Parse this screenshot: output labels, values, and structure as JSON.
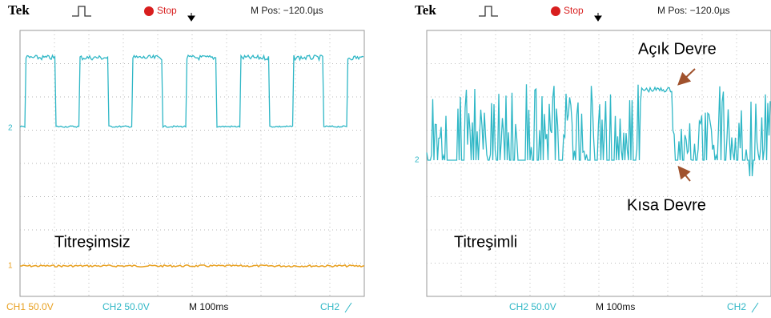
{
  "panels": [
    {
      "header": {
        "brand": "Tek",
        "status": "Stop",
        "position": "M Pos: −120.0µs"
      },
      "markers": [
        "2",
        "1"
      ],
      "footer": {
        "ch1": "CH1 50.0V",
        "ch2": "CH2 50.0V",
        "time": "M 100ms",
        "trigger": "CH2"
      },
      "caption": "Titreşimsiz"
    },
    {
      "header": {
        "brand": "Tek",
        "status": "Stop",
        "position": "M Pos: −120.0µs"
      },
      "markers": [
        "2"
      ],
      "footer": {
        "ch2": "CH2 50.0V",
        "time": "M 100ms",
        "trigger": "CH2"
      },
      "caption": "Titreşimli",
      "annotations": [
        "Açık Devre",
        "Kısa Devre"
      ]
    }
  ]
}
